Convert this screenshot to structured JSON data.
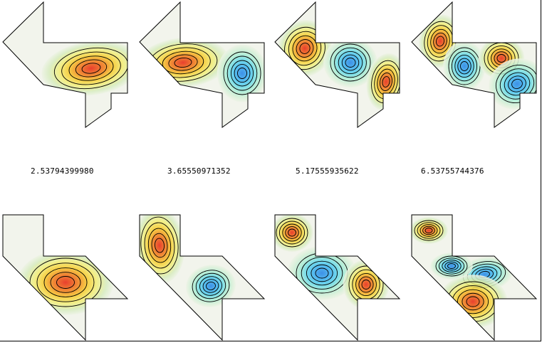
{
  "eigenvalues": [
    "2.53794399980",
    "3.65550971352",
    "5.17555935622",
    "6.53755744376"
  ],
  "colors": {
    "outline": "#000000",
    "contour": "#000000",
    "background_fill": "#f2f4ec",
    "positive_peak": "#e8200c",
    "negative_peak": "#1f7fe6"
  },
  "colormap": "jet-like (blue negative, green zero, red positive)",
  "panels": {
    "top_row_modes": [
      {
        "lobes": [
          {
            "sign": 1
          }
        ]
      },
      {
        "lobes": [
          {
            "sign": 1
          },
          {
            "sign": -1
          }
        ]
      },
      {
        "lobes": [
          {
            "sign": 1
          },
          {
            "sign": -1
          },
          {
            "sign": 1
          }
        ]
      },
      {
        "lobes": [
          {
            "sign": 1
          },
          {
            "sign": -1
          },
          {
            "sign": 1
          },
          {
            "sign": -1
          }
        ]
      }
    ],
    "bottom_row_modes": [
      {
        "lobes": [
          {
            "sign": 1
          }
        ]
      },
      {
        "lobes": [
          {
            "sign": 1
          },
          {
            "sign": -1
          }
        ]
      },
      {
        "lobes": [
          {
            "sign": 1
          },
          {
            "sign": -1
          },
          {
            "sign": 1
          }
        ]
      },
      {
        "lobes": [
          {
            "sign": 1
          },
          {
            "sign": -1
          },
          {
            "sign": 1
          },
          {
            "sign": -1
          }
        ]
      }
    ]
  }
}
